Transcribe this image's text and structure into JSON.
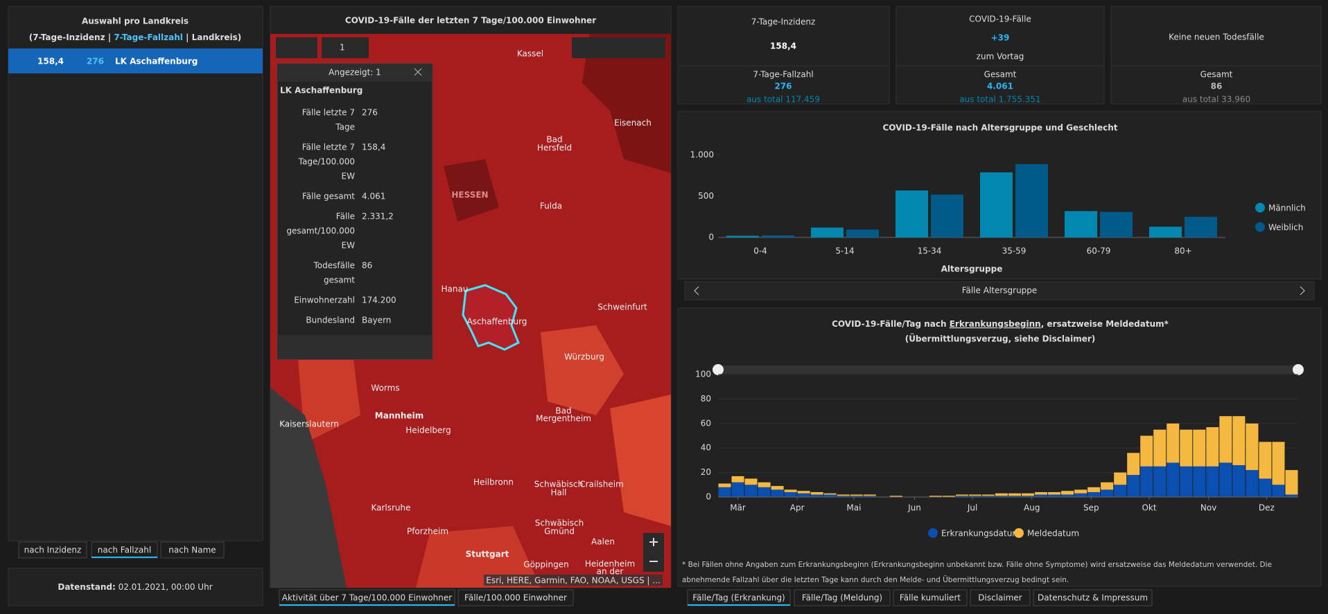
{
  "left_panel": {
    "title": "Auswahl pro Landkreis",
    "subtitle": [
      "(7-Tage-Inzidenz | ",
      "7-Tage-Fallzahl",
      " | Landkreis)"
    ],
    "selected": {
      "incidence": "158,4",
      "cases": "276",
      "name": "LK Aschaffenburg"
    },
    "sort_buttons": [
      "nach Inzidenz",
      "nach Fallzahl",
      "nach Name"
    ],
    "datenstand": [
      "Datenstand:",
      "02.01.2021, 00:00 Uhr"
    ]
  },
  "map_panel": {
    "title": "COVID-19-Fälle der letzten 7 Tage/100.000 Einwohner",
    "labels": [
      "Kassel",
      "Eisenach",
      "Bad",
      "Hersfeld",
      "HESSEN",
      "Fulda",
      "Schweinfurt",
      "Würzburg",
      "Worms",
      "Mannheim",
      "Kaiserslautern",
      "Heidelberg",
      "Bad",
      "Mergentheim",
      "Heilbronn",
      "Schwäbisch",
      "Hall",
      "Crailsheim",
      "Karlsruhe",
      "Pforzheim",
      "Schwäbisch",
      "Gmünd",
      "Aalen",
      "Stuttgart",
      "Göppingen",
      "Heidenheim",
      "an der",
      "Aschaffenburg",
      "Hanau"
    ],
    "attribution": "Esri, HERE, Garmin, FAO, NOAA, USGS | ...",
    "selection_count": "1",
    "popup": {
      "header": "Angezeigt: 1",
      "title": "LK Aschaffenburg",
      "rows": [
        {
          "label": [
            "Fälle letzte 7",
            "Tage"
          ],
          "value": "276"
        },
        {
          "label": [
            "Fälle letzte 7",
            "Tage/100.000",
            "EW"
          ],
          "value": "158,4"
        },
        {
          "label": [
            "Fälle gesamt"
          ],
          "value": "4.061"
        },
        {
          "label": [
            "Fälle",
            "gesamt/100.000",
            "EW"
          ],
          "value": "2.331,2"
        },
        {
          "label": [
            "Todesfälle",
            "gesamt"
          ],
          "value": "86"
        },
        {
          "label": [
            "Einwohnerzahl"
          ],
          "value": "174.200"
        },
        {
          "label": [
            "Bundesland"
          ],
          "value": "Bayern"
        }
      ]
    },
    "tabs": [
      "Aktivität über 7 Tage/100.000 Einwohner",
      "Fälle/100.000 Einwohner"
    ]
  },
  "indicators": [
    {
      "title": "7-Tage-Inzidenz",
      "main": "158,4",
      "sub_label": "7-Tage-Fallzahl",
      "sub_value": "276",
      "sub_total": "aus total 117.459"
    },
    {
      "title": "COVID-19-Fälle",
      "main": "+39",
      "main_note": "zum Vortag",
      "sub_label": "Gesamt",
      "sub_value": "4.061",
      "sub_total": "aus total 1.755.351"
    },
    {
      "title": "Keine neuen Todesfälle",
      "sub_label": "Gesamt",
      "sub_value": "86",
      "sub_total": "aus total 33.960"
    }
  ],
  "age_chart": {
    "type": "bar",
    "title": "COVID-19-Fälle nach Altersgruppe und Geschlecht",
    "x_label": "Altersgruppe",
    "categories": [
      "0-4",
      "5-14",
      "15-34",
      "35-59",
      "60-79",
      "80+"
    ],
    "series": [
      {
        "name": "Männlich",
        "color": "#0288b0",
        "values": [
          20,
          120,
          570,
          790,
          320,
          130
        ]
      },
      {
        "name": "Weiblich",
        "color": "#005a8a",
        "values": [
          25,
          95,
          520,
          890,
          310,
          250
        ]
      }
    ],
    "ylim": [
      0,
      1000
    ],
    "yticks": [
      0,
      500,
      {
        "value": 1000,
        "label": "1.000"
      }
    ],
    "pager": "Fälle Altersgruppe"
  },
  "daily_chart": {
    "type": "stacked-bar",
    "title": [
      "COVID-19-Fälle/Tag nach ",
      "Erkrankungsbeginn",
      ", ersatzweise Meldedatum*"
    ],
    "subtitle": "(Übermittlungsverzug, siehe Disclaimer)",
    "series": [
      {
        "name": "Erkrankungsdatum",
        "color": "#0b4fb0",
        "values": [
          8,
          12,
          10,
          8,
          6,
          4,
          3,
          2,
          2,
          1,
          1,
          1,
          0,
          0,
          0,
          0,
          0,
          0,
          1,
          1,
          1,
          1,
          1,
          1,
          2,
          2,
          2,
          3,
          4,
          6,
          10,
          18,
          25,
          25,
          28,
          25,
          25,
          25,
          28,
          26,
          22,
          15,
          10,
          2
        ]
      },
      {
        "name": "Meldedatum",
        "color": "#f5b942",
        "values": [
          3,
          5,
          5,
          4,
          3,
          2,
          2,
          2,
          1,
          1,
          1,
          1,
          0,
          1,
          0,
          0,
          1,
          1,
          1,
          1,
          1,
          2,
          2,
          2,
          2,
          2,
          3,
          3,
          4,
          6,
          10,
          18,
          25,
          30,
          32,
          30,
          30,
          32,
          38,
          40,
          38,
          30,
          35,
          20
        ]
      }
    ],
    "xlim": [
      0,
      44
    ],
    "xticks": [
      {
        "value": 1.5,
        "label": "Mär"
      },
      {
        "value": 6,
        "label": "Apr"
      },
      {
        "value": 10.3,
        "label": "Mai"
      },
      {
        "value": 14.9,
        "label": "Jun"
      },
      {
        "value": 19.3,
        "label": "Jul"
      },
      {
        "value": 23.8,
        "label": "Aug"
      },
      {
        "value": 28.3,
        "label": "Sep"
      },
      {
        "value": 32.7,
        "label": "Okt"
      },
      {
        "value": 37.2,
        "label": "Nov"
      },
      {
        "value": 41.6,
        "label": "Dez"
      }
    ],
    "ylim": [
      0,
      100
    ],
    "yticks": [
      0,
      20,
      40,
      60,
      80,
      100
    ],
    "footnote": "* Bei Fällen ohne Angaben zum Erkrankungsbeginn (Erkrankungsbeginn unbekannt bzw. Fälle ohne Symptome) wird ersatzweise das Meldedatum verwendet. Die abnehmende Fallzahl über die letzten Tage kann durch den Melde- und Übermittlungsverzug bedingt sein.",
    "tabs": [
      "Fälle/Tag (Erkrankung)",
      "Fälle/Tag (Meldung)",
      "Fälle kumuliert",
      "Disclaimer",
      "Datenschutz & Impressum"
    ]
  }
}
